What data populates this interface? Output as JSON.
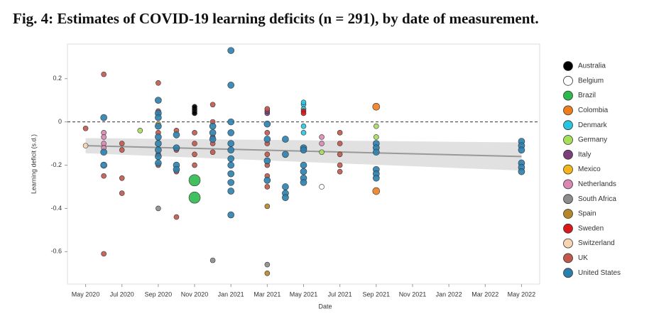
{
  "chart_data": {
    "type": "scatter",
    "title": "Fig. 4: Estimates of COVID-19 learning deficits (n = 291), by date of measurement.",
    "x_label": "Date",
    "y_label": "Learning deficit (s.d.)",
    "xlim": [
      "2020-04",
      "2022-06"
    ],
    "ylim": [
      -0.75,
      0.36
    ],
    "xticks": [
      {
        "value": "2020-05",
        "label": "May 2020"
      },
      {
        "value": "2020-07",
        "label": "Jul 2020"
      },
      {
        "value": "2020-09",
        "label": "Sep 2020"
      },
      {
        "value": "2020-11",
        "label": "Nov 2020"
      },
      {
        "value": "2021-01",
        "label": "Jan 2021"
      },
      {
        "value": "2021-03",
        "label": "Mar 2021"
      },
      {
        "value": "2021-05",
        "label": "May 2021"
      },
      {
        "value": "2021-07",
        "label": "Jul 2021"
      },
      {
        "value": "2021-09",
        "label": "Sep 2021"
      },
      {
        "value": "2021-11",
        "label": "Nov 2021"
      },
      {
        "value": "2022-01",
        "label": "Jan 2022"
      },
      {
        "value": "2022-03",
        "label": "Mar 2022"
      },
      {
        "value": "2022-05",
        "label": "May 2022"
      }
    ],
    "yticks": [
      0.2,
      0,
      -0.2,
      -0.4,
      -0.6
    ],
    "reference_line": 0,
    "trend": {
      "x": [
        "2020-05",
        "2022-05"
      ],
      "values": [
        -0.11,
        -0.16
      ],
      "lower": [
        -0.145,
        -0.225
      ],
      "upper": [
        -0.075,
        -0.095
      ],
      "color": "#999999",
      "band_color": "#d9d9d9"
    },
    "legend_position": "right",
    "series": [
      {
        "name": "Australia",
        "color": "#000000",
        "marker_size": 3.5,
        "x": [
          "2020-11",
          "2020-11",
          "2020-11",
          "2020-11"
        ],
        "values": [
          0.05,
          0.06,
          0.04,
          0.07
        ]
      },
      {
        "name": "Belgium",
        "color": "#ffffff",
        "marker_size": 3.5,
        "x": [
          "2020-06",
          "2021-06"
        ],
        "values": [
          -0.2,
          -0.3
        ]
      },
      {
        "name": "Brazil",
        "color": "#2db84c",
        "marker_size": 8,
        "x": [
          "2020-11",
          "2020-11"
        ],
        "values": [
          -0.27,
          -0.35
        ]
      },
      {
        "name": "Colombia",
        "color": "#ee7d1f",
        "marker_size": 5,
        "x": [
          "2021-09",
          "2021-09"
        ],
        "values": [
          0.07,
          -0.32
        ]
      },
      {
        "name": "Denmark",
        "color": "#29c4e0",
        "marker_size": 3.5,
        "x": [
          "2021-05",
          "2021-05",
          "2021-05",
          "2021-05",
          "2021-05"
        ],
        "values": [
          0.08,
          0.09,
          0.06,
          -0.02,
          -0.05
        ]
      },
      {
        "name": "Germany",
        "color": "#a6de5a",
        "marker_size": 3.5,
        "x": [
          "2021-09",
          "2021-09",
          "2021-06",
          "2020-08"
        ],
        "values": [
          -0.02,
          -0.07,
          -0.14,
          -0.04
        ]
      },
      {
        "name": "Italy",
        "color": "#7b3f7a",
        "marker_size": 3.5,
        "x": [
          "2021-03",
          "2021-03"
        ],
        "values": [
          0.04,
          0.05
        ]
      },
      {
        "name": "Mexico",
        "color": "#f2b51c",
        "marker_size": 3.5,
        "x": [
          "2020-09"
        ],
        "values": [
          -0.01
        ]
      },
      {
        "name": "Netherlands",
        "color": "#d987b3",
        "marker_size": 3.5,
        "x": [
          "2020-06",
          "2020-06",
          "2020-06",
          "2020-06",
          "2021-06",
          "2021-06"
        ],
        "values": [
          -0.05,
          -0.07,
          -0.1,
          -0.12,
          -0.07,
          -0.1
        ]
      },
      {
        "name": "South Africa",
        "color": "#8c8c8c",
        "marker_size": 3.5,
        "x": [
          "2021-03",
          "2020-12",
          "2020-09"
        ],
        "values": [
          -0.66,
          -0.64,
          -0.4
        ]
      },
      {
        "name": "Spain",
        "color": "#b5862a",
        "marker_size": 3.5,
        "x": [
          "2021-03",
          "2021-03"
        ],
        "values": [
          -0.39,
          -0.7
        ]
      },
      {
        "name": "Sweden",
        "color": "#d7191c",
        "marker_size": 3.5,
        "x": [
          "2021-05",
          "2021-05"
        ],
        "values": [
          0.05,
          0.04
        ]
      },
      {
        "name": "Switzerland",
        "color": "#f8d3b0",
        "marker_size": 3.5,
        "x": [
          "2020-05"
        ],
        "values": [
          -0.11
        ]
      },
      {
        "name": "UK",
        "color": "#c0584b",
        "marker_size": 3.5,
        "x": [
          "2020-05",
          "2020-06",
          "2020-06",
          "2020-06",
          "2020-07",
          "2020-07",
          "2020-07",
          "2020-07",
          "2020-09",
          "2020-09",
          "2020-09",
          "2020-09",
          "2020-09",
          "2020-10",
          "2020-10",
          "2020-10",
          "2020-10",
          "2020-11",
          "2020-11",
          "2020-11",
          "2020-11",
          "2020-12",
          "2020-12",
          "2020-12",
          "2020-12",
          "2020-12",
          "2021-03",
          "2021-03",
          "2021-03",
          "2021-03",
          "2021-03",
          "2021-03",
          "2021-03",
          "2021-07",
          "2021-07",
          "2021-07",
          "2021-07",
          "2021-07"
        ],
        "values": [
          -0.03,
          0.22,
          -0.25,
          -0.61,
          -0.1,
          -0.13,
          -0.26,
          -0.33,
          0.18,
          0.05,
          -0.05,
          -0.15,
          -0.2,
          -0.04,
          -0.13,
          -0.44,
          -0.23,
          -0.05,
          -0.1,
          -0.15,
          -0.2,
          0.08,
          0.0,
          -0.07,
          -0.1,
          -0.14,
          0.06,
          -0.05,
          -0.1,
          -0.15,
          -0.2,
          -0.25,
          -0.3,
          -0.05,
          -0.1,
          -0.15,
          -0.2,
          -0.23
        ]
      },
      {
        "name": "United States",
        "color": "#2a7fae",
        "marker_size": 4.5,
        "x": [
          "2020-06",
          "2020-06",
          "2020-06",
          "2020-09",
          "2020-09",
          "2020-09",
          "2020-09",
          "2020-09",
          "2020-09",
          "2020-09",
          "2020-09",
          "2020-09",
          "2020-10",
          "2020-10",
          "2020-10",
          "2020-10",
          "2020-12",
          "2020-12",
          "2020-12",
          "2021-01",
          "2021-01",
          "2021-01",
          "2021-01",
          "2021-01",
          "2021-01",
          "2021-01",
          "2021-01",
          "2021-01",
          "2021-01",
          "2021-01",
          "2021-01",
          "2021-03",
          "2021-03",
          "2021-03",
          "2021-03",
          "2021-04",
          "2021-04",
          "2021-04",
          "2021-04",
          "2021-04",
          "2021-05",
          "2021-05",
          "2021-05",
          "2021-05",
          "2021-05",
          "2021-05",
          "2021-09",
          "2021-09",
          "2021-09",
          "2021-09",
          "2021-09",
          "2021-09",
          "2022-05",
          "2022-05",
          "2022-05",
          "2022-05",
          "2022-05",
          "2022-05"
        ],
        "values": [
          0.02,
          -0.14,
          -0.2,
          0.1,
          0.04,
          0.02,
          -0.02,
          -0.07,
          -0.1,
          -0.13,
          -0.16,
          -0.19,
          -0.06,
          -0.12,
          -0.2,
          -0.22,
          -0.02,
          -0.05,
          -0.08,
          0.33,
          0.17,
          0.0,
          -0.05,
          -0.1,
          -0.13,
          -0.17,
          -0.2,
          -0.24,
          -0.28,
          -0.32,
          -0.43,
          -0.01,
          -0.08,
          -0.18,
          -0.27,
          -0.08,
          -0.15,
          -0.3,
          -0.33,
          -0.35,
          -0.12,
          -0.13,
          -0.2,
          -0.23,
          -0.26,
          -0.28,
          -0.1,
          -0.12,
          -0.14,
          -0.22,
          -0.24,
          -0.26,
          -0.09,
          -0.11,
          -0.13,
          -0.19,
          -0.21,
          -0.23
        ]
      }
    ]
  }
}
